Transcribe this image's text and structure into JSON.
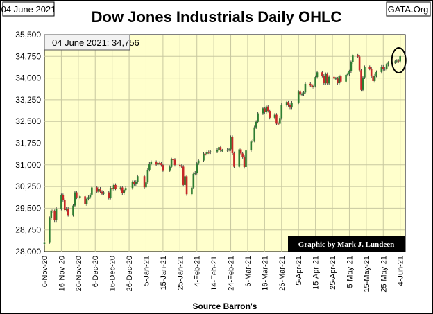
{
  "header": {
    "date_label": "04 June 2021",
    "title": "Dow Jones Industrials Daily OHLC",
    "brand": "GATA.Org"
  },
  "infobox": {
    "text": "04 June 2021:  34,756"
  },
  "credit": "Graphic by Mark J. Lundeen",
  "source": "Source Barron's",
  "colors": {
    "plot_bg": "#ffffcc",
    "up": "#2e7d32",
    "down": "#c62828",
    "grid": "#c8c8a0",
    "credit_bg": "#000000"
  },
  "chart_data": {
    "type": "ohlc",
    "title": "Dow Jones Industrials Daily OHLC",
    "xlabel": "Source Barron's",
    "ylabel": "",
    "ylim": [
      28000,
      35500
    ],
    "yticks": [
      28000,
      28750,
      29500,
      30250,
      31000,
      31750,
      32500,
      33250,
      34000,
      34750,
      35500
    ],
    "ytick_labels": [
      "28,000",
      "28,750",
      "29,500",
      "30,250",
      "31,000",
      "31,750",
      "32,500",
      "33,250",
      "34,000",
      "34,750",
      "35,500"
    ],
    "x_tick_labels": [
      "6-Nov-20",
      "16-Nov-20",
      "26-Nov-20",
      "6-Dec-20",
      "16-Dec-20",
      "26-Dec-20",
      "5-Jan-21",
      "15-Jan-21",
      "25-Jan-21",
      "4-Feb-21",
      "14-Feb-21",
      "24-Feb-21",
      "6-Mar-21",
      "16-Mar-21",
      "26-Mar-21",
      "5-Apr-21",
      "15-Apr-21",
      "25-Apr-21",
      "5-May-21",
      "15-May-21",
      "25-May-21",
      "4-Jun-21"
    ],
    "grid": true,
    "highlight": {
      "date": "4-Jun-21",
      "value": 34756
    },
    "closes": [
      {
        "date": "2020-11-06",
        "close": 28323
      },
      {
        "date": "2020-11-09",
        "close": 29158
      },
      {
        "date": "2020-11-10",
        "close": 29420
      },
      {
        "date": "2020-11-11",
        "close": 29397
      },
      {
        "date": "2020-11-12",
        "close": 29080
      },
      {
        "date": "2020-11-13",
        "close": 29480
      },
      {
        "date": "2020-11-16",
        "close": 29950
      },
      {
        "date": "2020-11-17",
        "close": 29783
      },
      {
        "date": "2020-11-18",
        "close": 29438
      },
      {
        "date": "2020-11-19",
        "close": 29483
      },
      {
        "date": "2020-11-20",
        "close": 29263
      },
      {
        "date": "2020-11-23",
        "close": 29591
      },
      {
        "date": "2020-11-24",
        "close": 30046
      },
      {
        "date": "2020-11-25",
        "close": 29872
      },
      {
        "date": "2020-11-27",
        "close": 29910
      },
      {
        "date": "2020-11-30",
        "close": 29638
      },
      {
        "date": "2020-12-01",
        "close": 29824
      },
      {
        "date": "2020-12-02",
        "close": 29883
      },
      {
        "date": "2020-12-03",
        "close": 29969
      },
      {
        "date": "2020-12-04",
        "close": 30218
      },
      {
        "date": "2020-12-07",
        "close": 30070
      },
      {
        "date": "2020-12-08",
        "close": 30174
      },
      {
        "date": "2020-12-09",
        "close": 30068
      },
      {
        "date": "2020-12-10",
        "close": 29999
      },
      {
        "date": "2020-12-11",
        "close": 30046
      },
      {
        "date": "2020-12-14",
        "close": 29861
      },
      {
        "date": "2020-12-15",
        "close": 30199
      },
      {
        "date": "2020-12-16",
        "close": 30155
      },
      {
        "date": "2020-12-17",
        "close": 30303
      },
      {
        "date": "2020-12-18",
        "close": 30179
      },
      {
        "date": "2020-12-21",
        "close": 30216
      },
      {
        "date": "2020-12-22",
        "close": 30015
      },
      {
        "date": "2020-12-23",
        "close": 30129
      },
      {
        "date": "2020-12-24",
        "close": 30199
      },
      {
        "date": "2020-12-28",
        "close": 30403
      },
      {
        "date": "2020-12-29",
        "close": 30335
      },
      {
        "date": "2020-12-30",
        "close": 30409
      },
      {
        "date": "2020-12-31",
        "close": 30606
      },
      {
        "date": "2021-01-04",
        "close": 30223
      },
      {
        "date": "2021-01-05",
        "close": 30391
      },
      {
        "date": "2021-01-06",
        "close": 30829
      },
      {
        "date": "2021-01-07",
        "close": 31041
      },
      {
        "date": "2021-01-08",
        "close": 31097
      },
      {
        "date": "2021-01-11",
        "close": 31009
      },
      {
        "date": "2021-01-12",
        "close": 31068
      },
      {
        "date": "2021-01-13",
        "close": 31061
      },
      {
        "date": "2021-01-14",
        "close": 30991
      },
      {
        "date": "2021-01-15",
        "close": 30814
      },
      {
        "date": "2021-01-19",
        "close": 30930
      },
      {
        "date": "2021-01-20",
        "close": 31188
      },
      {
        "date": "2021-01-21",
        "close": 31176
      },
      {
        "date": "2021-01-22",
        "close": 30997
      },
      {
        "date": "2021-01-25",
        "close": 30960
      },
      {
        "date": "2021-01-26",
        "close": 30937
      },
      {
        "date": "2021-01-27",
        "close": 30303
      },
      {
        "date": "2021-01-28",
        "close": 30603
      },
      {
        "date": "2021-01-29",
        "close": 29983
      },
      {
        "date": "2021-02-01",
        "close": 30212
      },
      {
        "date": "2021-02-02",
        "close": 30688
      },
      {
        "date": "2021-02-03",
        "close": 30724
      },
      {
        "date": "2021-02-04",
        "close": 31056
      },
      {
        "date": "2021-02-05",
        "close": 31148
      },
      {
        "date": "2021-02-08",
        "close": 31386
      },
      {
        "date": "2021-02-09",
        "close": 31376
      },
      {
        "date": "2021-02-10",
        "close": 31438
      },
      {
        "date": "2021-02-11",
        "close": 31431
      },
      {
        "date": "2021-02-12",
        "close": 31458
      },
      {
        "date": "2021-02-16",
        "close": 31523
      },
      {
        "date": "2021-02-17",
        "close": 31613
      },
      {
        "date": "2021-02-18",
        "close": 31493
      },
      {
        "date": "2021-02-19",
        "close": 31494
      },
      {
        "date": "2021-02-22",
        "close": 31522
      },
      {
        "date": "2021-02-23",
        "close": 31537
      },
      {
        "date": "2021-02-24",
        "close": 31962
      },
      {
        "date": "2021-02-25",
        "close": 31402
      },
      {
        "date": "2021-02-26",
        "close": 30932
      },
      {
        "date": "2021-03-01",
        "close": 31535
      },
      {
        "date": "2021-03-02",
        "close": 31391
      },
      {
        "date": "2021-03-03",
        "close": 31270
      },
      {
        "date": "2021-03-04",
        "close": 30924
      },
      {
        "date": "2021-03-05",
        "close": 31496
      },
      {
        "date": "2021-03-08",
        "close": 31802
      },
      {
        "date": "2021-03-09",
        "close": 31833
      },
      {
        "date": "2021-03-10",
        "close": 32297
      },
      {
        "date": "2021-03-11",
        "close": 32485
      },
      {
        "date": "2021-03-12",
        "close": 32779
      },
      {
        "date": "2021-03-15",
        "close": 32953
      },
      {
        "date": "2021-03-16",
        "close": 32826
      },
      {
        "date": "2021-03-17",
        "close": 33015
      },
      {
        "date": "2021-03-18",
        "close": 32862
      },
      {
        "date": "2021-03-19",
        "close": 32628
      },
      {
        "date": "2021-03-22",
        "close": 32731
      },
      {
        "date": "2021-03-23",
        "close": 32423
      },
      {
        "date": "2021-03-24",
        "close": 32420
      },
      {
        "date": "2021-03-25",
        "close": 32619
      },
      {
        "date": "2021-03-26",
        "close": 33072
      },
      {
        "date": "2021-03-29",
        "close": 33171
      },
      {
        "date": "2021-03-30",
        "close": 33067
      },
      {
        "date": "2021-03-31",
        "close": 32982
      },
      {
        "date": "2021-04-01",
        "close": 33153
      },
      {
        "date": "2021-04-05",
        "close": 33527
      },
      {
        "date": "2021-04-06",
        "close": 33430
      },
      {
        "date": "2021-04-07",
        "close": 33446
      },
      {
        "date": "2021-04-08",
        "close": 33503
      },
      {
        "date": "2021-04-09",
        "close": 33801
      },
      {
        "date": "2021-04-12",
        "close": 33746
      },
      {
        "date": "2021-04-13",
        "close": 33677
      },
      {
        "date": "2021-04-14",
        "close": 33730
      },
      {
        "date": "2021-04-15",
        "close": 34036
      },
      {
        "date": "2021-04-16",
        "close": 34200
      },
      {
        "date": "2021-04-19",
        "close": 34078
      },
      {
        "date": "2021-04-20",
        "close": 33821
      },
      {
        "date": "2021-04-21",
        "close": 34137
      },
      {
        "date": "2021-04-22",
        "close": 33815
      },
      {
        "date": "2021-04-23",
        "close": 34043
      },
      {
        "date": "2021-04-26",
        "close": 33981
      },
      {
        "date": "2021-04-27",
        "close": 33985
      },
      {
        "date": "2021-04-28",
        "close": 33820
      },
      {
        "date": "2021-04-29",
        "close": 34060
      },
      {
        "date": "2021-04-30",
        "close": 33875
      },
      {
        "date": "2021-05-03",
        "close": 34113
      },
      {
        "date": "2021-05-04",
        "close": 34133
      },
      {
        "date": "2021-05-05",
        "close": 34230
      },
      {
        "date": "2021-05-06",
        "close": 34548
      },
      {
        "date": "2021-05-07",
        "close": 34778
      },
      {
        "date": "2021-05-10",
        "close": 34743
      },
      {
        "date": "2021-05-11",
        "close": 34270
      },
      {
        "date": "2021-05-12",
        "close": 33587
      },
      {
        "date": "2021-05-13",
        "close": 34022
      },
      {
        "date": "2021-05-14",
        "close": 34382
      },
      {
        "date": "2021-05-17",
        "close": 34327
      },
      {
        "date": "2021-05-18",
        "close": 34061
      },
      {
        "date": "2021-05-19",
        "close": 33896
      },
      {
        "date": "2021-05-20",
        "close": 34084
      },
      {
        "date": "2021-05-21",
        "close": 34208
      },
      {
        "date": "2021-05-24",
        "close": 34394
      },
      {
        "date": "2021-05-25",
        "close": 34313
      },
      {
        "date": "2021-05-26",
        "close": 34323
      },
      {
        "date": "2021-05-27",
        "close": 34465
      },
      {
        "date": "2021-05-28",
        "close": 34529
      },
      {
        "date": "2021-06-01",
        "close": 34575
      },
      {
        "date": "2021-06-02",
        "close": 34600
      },
      {
        "date": "2021-06-03",
        "close": 34577
      },
      {
        "date": "2021-06-04",
        "close": 34756
      }
    ]
  }
}
